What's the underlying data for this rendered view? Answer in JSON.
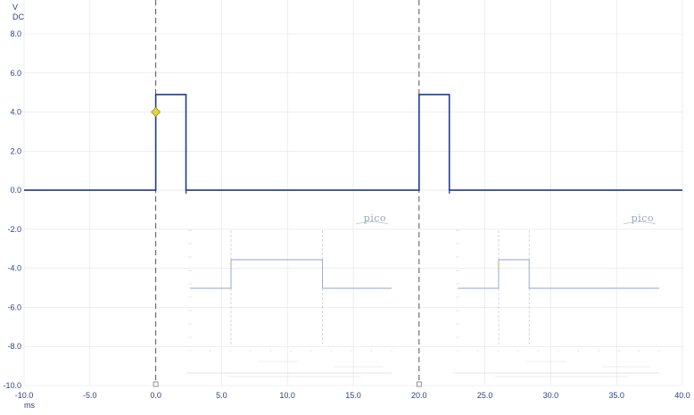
{
  "chart_data": {
    "type": "line",
    "title": "",
    "xlabel": "ms",
    "ylabel": "V",
    "coupling": "DC",
    "xlim": [
      -10.0,
      40.0
    ],
    "ylim": [
      -10.0,
      8.0
    ],
    "x_ticks": [
      "-10.0",
      "-5.0",
      "0.0",
      "5.0",
      "10.0",
      "15.0",
      "20.0",
      "25.0",
      "30.0",
      "35.0",
      "40.0"
    ],
    "y_ticks": [
      "8.0",
      "6.0",
      "4.0",
      "2.0",
      "0.0",
      "-2.0",
      "-4.0",
      "-6.0",
      "-8.0",
      "-10.0"
    ],
    "grid": true,
    "series": [
      {
        "color": "#1f3a93",
        "x": [
          -10.0,
          0.0,
          0.0,
          2.3,
          2.3,
          20.0,
          20.0,
          22.3,
          22.3,
          40.0
        ],
        "y": [
          0.0,
          0.0,
          4.9,
          4.9,
          0.0,
          0.0,
          4.9,
          4.9,
          0.0,
          0.0
        ]
      }
    ],
    "cursors": [
      {
        "x": 0.0,
        "style": "dashed"
      },
      {
        "x": 20.0,
        "style": "dashed"
      }
    ],
    "trigger_marker": {
      "x": 0.0,
      "y": 4.0,
      "color": "#e8d33a"
    }
  },
  "watermarks": [
    {
      "logo_text": "pico"
    },
    {
      "logo_text": "pico"
    }
  ],
  "colors": {
    "trace": "#1f3a93",
    "grid": "#e3e3e3",
    "axis_text": "#2b3f86",
    "cursor": "#555555",
    "trigger": "#e8d33a"
  }
}
